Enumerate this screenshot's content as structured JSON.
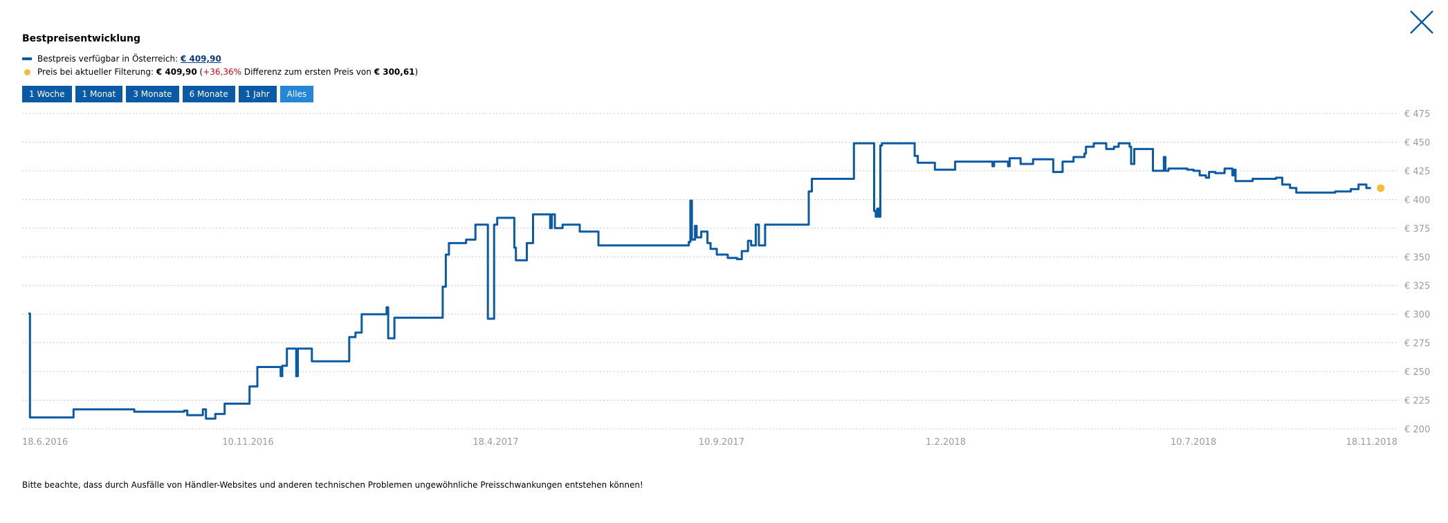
{
  "header": {
    "title": "Bestpreisentwicklung"
  },
  "legend": {
    "line_label": "Bestpreis verfügbar in Österreich:",
    "line_value": "€ 409,90",
    "dot_label": "Preis bei aktueller Filterung:",
    "dot_value": "€ 409,90",
    "open_paren": "(",
    "diff_pct": "+36,36%",
    "diff_text": "Differenz zum ersten Preis von",
    "first_price": "€ 300,61",
    "close_paren": ")"
  },
  "range_buttons": [
    {
      "label": "1 Woche",
      "active": false
    },
    {
      "label": "1 Monat",
      "active": false
    },
    {
      "label": "3 Monate",
      "active": false
    },
    {
      "label": "6 Monate",
      "active": false
    },
    {
      "label": "1 Jahr",
      "active": false
    },
    {
      "label": "Alles",
      "active": true
    }
  ],
  "note": "Bitte beachte, dass durch Ausfälle von Händler-Websites und anderen technischen Problemen ungewöhnliche Preisschwankungen entstehen können!",
  "colors": {
    "line": "#0a5aa5",
    "dot": "#f3bd3c",
    "button": "#0a5aa5",
    "button_active": "#2486d6",
    "diff": "#d0021b"
  },
  "icons": {
    "close": "close-icon"
  },
  "chart_data": {
    "type": "line",
    "title": "Bestpreisentwicklung",
    "xlabel": "",
    "ylabel": "",
    "xlim": [
      "2016-06-18",
      "2018-11-18"
    ],
    "ylim": [
      200,
      475
    ],
    "grid": true,
    "y_ticks": [
      {
        "value": 475,
        "label": "€ 475"
      },
      {
        "value": 450,
        "label": "€ 450"
      },
      {
        "value": 425,
        "label": "€ 425"
      },
      {
        "value": 400,
        "label": "€ 400"
      },
      {
        "value": 375,
        "label": "€ 375"
      },
      {
        "value": 350,
        "label": "€ 350"
      },
      {
        "value": 325,
        "label": "€ 325"
      },
      {
        "value": 300,
        "label": "€ 300"
      },
      {
        "value": 275,
        "label": "€ 275"
      },
      {
        "value": 250,
        "label": "€ 250"
      },
      {
        "value": 225,
        "label": "€ 225"
      },
      {
        "value": 200,
        "label": "€ 200"
      }
    ],
    "x_ticks": [
      {
        "date": "2016-06-18",
        "label": "18.6.2016"
      },
      {
        "date": "2016-11-10",
        "label": "10.11.2016"
      },
      {
        "date": "2017-04-18",
        "label": "18.4.2017"
      },
      {
        "date": "2017-09-10",
        "label": "10.9.2017"
      },
      {
        "date": "2018-02-01",
        "label": "1.2.2018"
      },
      {
        "date": "2018-07-10",
        "label": "10.7.2018"
      },
      {
        "date": "2018-11-18",
        "label": "18.11.2018"
      }
    ],
    "series": [
      {
        "step": true,
        "points": [
          [
            "2016-06-22",
            300.6
          ],
          [
            "2016-06-23",
            210
          ],
          [
            "2016-07-20",
            210
          ],
          [
            "2016-07-21",
            217
          ],
          [
            "2016-08-28",
            217
          ],
          [
            "2016-08-29",
            215
          ],
          [
            "2016-09-30",
            216
          ],
          [
            "2016-10-02",
            212
          ],
          [
            "2016-10-10",
            212
          ],
          [
            "2016-10-12",
            217
          ],
          [
            "2016-10-14",
            209
          ],
          [
            "2016-10-20",
            213
          ],
          [
            "2016-10-26",
            222
          ],
          [
            "2016-11-09",
            222
          ],
          [
            "2016-11-11",
            237
          ],
          [
            "2016-11-16",
            254
          ],
          [
            "2016-11-30",
            254
          ],
          [
            "2016-12-01",
            246
          ],
          [
            "2016-12-02",
            255
          ],
          [
            "2016-12-05",
            270
          ],
          [
            "2016-12-10",
            270
          ],
          [
            "2016-12-11",
            246
          ],
          [
            "2016-12-12",
            270
          ],
          [
            "2016-12-21",
            259
          ],
          [
            "2017-01-13",
            259
          ],
          [
            "2017-01-14",
            280
          ],
          [
            "2017-01-18",
            284
          ],
          [
            "2017-01-22",
            300
          ],
          [
            "2017-02-06",
            300
          ],
          [
            "2017-02-07",
            306
          ],
          [
            "2017-02-08",
            279
          ],
          [
            "2017-02-12",
            297
          ],
          [
            "2017-03-13",
            297
          ],
          [
            "2017-03-15",
            324
          ],
          [
            "2017-03-17",
            352
          ],
          [
            "2017-03-19",
            362
          ],
          [
            "2017-03-30",
            365
          ],
          [
            "2017-04-05",
            378
          ],
          [
            "2017-04-12",
            378
          ],
          [
            "2017-04-13",
            296
          ],
          [
            "2017-04-16",
            296
          ],
          [
            "2017-04-17",
            378
          ],
          [
            "2017-04-19",
            384
          ],
          [
            "2017-04-29",
            384
          ],
          [
            "2017-04-30",
            358
          ],
          [
            "2017-05-01",
            347
          ],
          [
            "2017-05-07",
            347
          ],
          [
            "2017-05-08",
            362
          ],
          [
            "2017-05-12",
            387
          ],
          [
            "2017-05-22",
            387
          ],
          [
            "2017-05-23",
            375
          ],
          [
            "2017-05-24",
            387
          ],
          [
            "2017-05-26",
            375
          ],
          [
            "2017-05-31",
            378
          ],
          [
            "2017-06-10",
            378
          ],
          [
            "2017-06-11",
            372
          ],
          [
            "2017-06-20",
            372
          ],
          [
            "2017-06-23",
            360
          ],
          [
            "2017-08-18",
            360
          ],
          [
            "2017-08-20",
            363
          ],
          [
            "2017-08-21",
            399
          ],
          [
            "2017-08-22",
            365
          ],
          [
            "2017-08-24",
            377
          ],
          [
            "2017-08-25",
            367
          ],
          [
            "2017-08-28",
            372
          ],
          [
            "2017-09-01",
            362
          ],
          [
            "2017-09-03",
            357
          ],
          [
            "2017-09-07",
            352
          ],
          [
            "2017-09-14",
            349
          ],
          [
            "2017-09-20",
            348
          ],
          [
            "2017-09-23",
            355
          ],
          [
            "2017-09-27",
            364
          ],
          [
            "2017-09-29",
            360
          ],
          [
            "2017-10-02",
            378
          ],
          [
            "2017-10-04",
            360
          ],
          [
            "2017-10-08",
            378
          ],
          [
            "2017-10-20",
            378
          ],
          [
            "2017-10-22",
            378
          ],
          [
            "2017-11-04",
            378
          ],
          [
            "2017-11-05",
            407
          ],
          [
            "2017-11-07",
            418
          ],
          [
            "2017-12-03",
            418
          ],
          [
            "2017-12-04",
            449
          ],
          [
            "2017-12-16",
            449
          ],
          [
            "2017-12-17",
            390
          ],
          [
            "2017-12-18",
            385
          ],
          [
            "2017-12-19",
            392
          ],
          [
            "2017-12-20",
            385
          ],
          [
            "2017-12-21",
            447
          ],
          [
            "2017-12-22",
            449
          ],
          [
            "2018-01-11",
            449
          ],
          [
            "2018-01-12",
            438
          ],
          [
            "2018-01-14",
            432
          ],
          [
            "2018-01-24",
            432
          ],
          [
            "2018-01-25",
            426
          ],
          [
            "2018-02-06",
            426
          ],
          [
            "2018-02-07",
            433
          ],
          [
            "2018-03-02",
            433
          ],
          [
            "2018-03-03",
            429
          ],
          [
            "2018-03-04",
            433
          ],
          [
            "2018-03-13",
            429
          ],
          [
            "2018-03-14",
            436
          ],
          [
            "2018-03-19",
            436
          ],
          [
            "2018-03-21",
            431
          ],
          [
            "2018-03-29",
            435
          ],
          [
            "2018-04-10",
            435
          ],
          [
            "2018-04-11",
            424
          ],
          [
            "2018-04-16",
            424
          ],
          [
            "2018-04-17",
            433
          ],
          [
            "2018-04-24",
            437
          ],
          [
            "2018-05-01",
            440
          ],
          [
            "2018-05-02",
            446
          ],
          [
            "2018-05-07",
            449
          ],
          [
            "2018-05-15",
            444
          ],
          [
            "2018-05-20",
            446
          ],
          [
            "2018-05-23",
            449
          ],
          [
            "2018-05-30",
            446
          ],
          [
            "2018-05-31",
            431
          ],
          [
            "2018-06-02",
            444
          ],
          [
            "2018-06-12",
            444
          ],
          [
            "2018-06-14",
            425
          ],
          [
            "2018-06-20",
            425
          ],
          [
            "2018-06-21",
            437
          ],
          [
            "2018-06-22",
            425
          ],
          [
            "2018-06-24",
            427
          ],
          [
            "2018-07-06",
            426
          ],
          [
            "2018-07-10",
            425
          ],
          [
            "2018-07-14",
            421
          ],
          [
            "2018-07-18",
            419
          ],
          [
            "2018-07-20",
            424
          ],
          [
            "2018-07-24",
            423
          ],
          [
            "2018-07-30",
            427
          ],
          [
            "2018-08-04",
            421
          ],
          [
            "2018-08-05",
            426
          ],
          [
            "2018-08-06",
            416
          ],
          [
            "2018-08-17",
            418
          ],
          [
            "2018-09-01",
            419
          ],
          [
            "2018-09-05",
            413
          ],
          [
            "2018-09-10",
            410
          ],
          [
            "2018-09-14",
            406
          ],
          [
            "2018-10-09",
            407
          ],
          [
            "2018-10-19",
            409
          ],
          [
            "2018-10-24",
            413
          ],
          [
            "2018-10-29",
            409.9
          ],
          [
            "2018-11-01",
            409.9
          ]
        ]
      }
    ],
    "current_point": {
      "date": "2018-11-01",
      "value": 409.9
    }
  }
}
